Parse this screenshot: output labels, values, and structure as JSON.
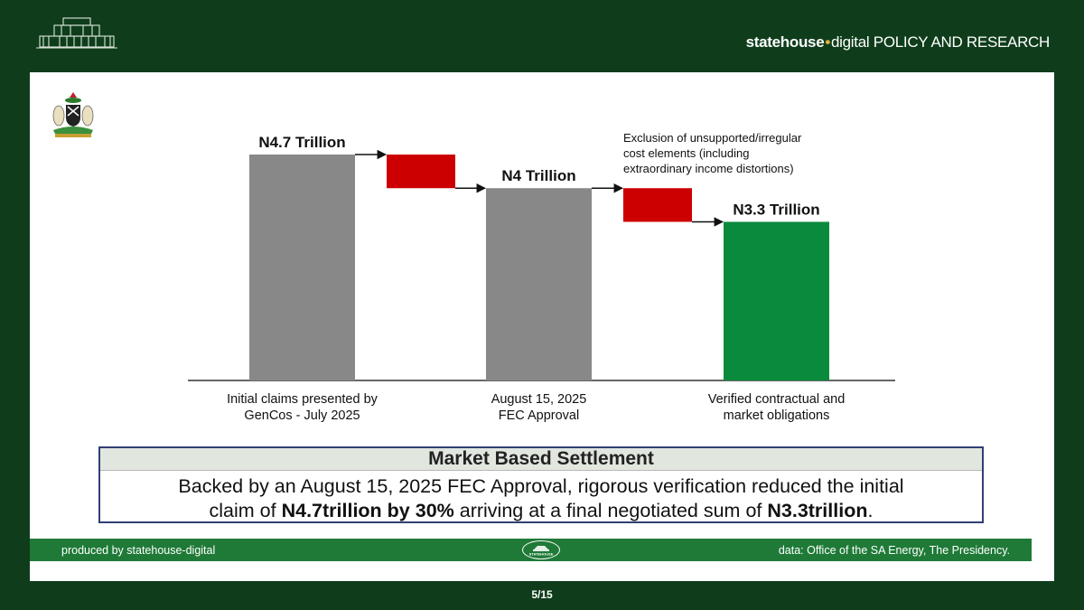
{
  "header": {
    "brand_bold": "statehouse",
    "brand_light": "digital",
    "brand_rest": "POLICY AND RESEARCH"
  },
  "chart_data": {
    "type": "waterfall",
    "bars": [
      {
        "label": "N4.7 Trillion",
        "category": [
          "Initial claims presented by",
          "GenCos - July 2025"
        ],
        "start": 0,
        "end": 4.7,
        "kind": "total",
        "color": "#888888"
      },
      {
        "label": "",
        "category": [],
        "start": 4.7,
        "end": 4.0,
        "kind": "decrease",
        "color": "#cc0000"
      },
      {
        "label": "N4 Trillion",
        "category": [
          "August 15, 2025",
          "FEC Approval"
        ],
        "start": 0,
        "end": 4.0,
        "kind": "total",
        "color": "#888888"
      },
      {
        "label": "",
        "category": [],
        "start": 4.0,
        "end": 3.3,
        "kind": "decrease",
        "color": "#cc0000"
      },
      {
        "label": "N3.3 Trillion",
        "category": [
          "Verified contractual and",
          "market obligations"
        ],
        "start": 0,
        "end": 3.3,
        "kind": "total",
        "color": "#0a8a3c"
      }
    ],
    "annotation": [
      "Exclusion of unsupported/irregular",
      "cost elements (including",
      "extraordinary income distortions)"
    ],
    "unit": "Trillion"
  },
  "settlement": {
    "title": "Market Based Settlement",
    "line1": "Backed by an August 15, 2025 FEC Approval, rigorous verification reduced the initial",
    "line2_a": "claim of ",
    "line2_b": "N4.7trillion by 30%",
    "line2_c": " arriving at a final negotiated sum of ",
    "line2_d": "N3.3trillion",
    "line2_e": "."
  },
  "footer": {
    "left": "produced by statehouse-digital",
    "right": "data: Office of the SA Energy, The Presidency.",
    "logo_text": "STATEHOUSE"
  },
  "page": "5/15"
}
